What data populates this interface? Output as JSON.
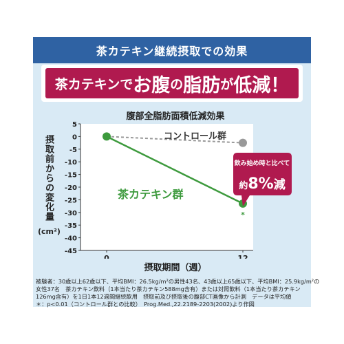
{
  "banner_title": "茶カテキン継続摂取での効果",
  "headline": {
    "p1": "茶カテキンで",
    "p2": "お腹",
    "p3": "の",
    "p4": "脂肪",
    "p5": "が",
    "p6": "低減！"
  },
  "chart_data": {
    "type": "line",
    "title": "腹部全脂肪面積低減効果",
    "ylabel": "摂取前からの変化量",
    "yunit": "(cm²)",
    "xlabel": "摂取期間（週）",
    "x": [
      0,
      12
    ],
    "ylim": [
      -45,
      5
    ],
    "yticks": [
      5,
      0,
      -5,
      -10,
      -15,
      -20,
      -25,
      -30,
      -35,
      -40,
      -45
    ],
    "xticks": [
      "0",
      "12"
    ],
    "series": [
      {
        "name": "コントロール群",
        "values": [
          0,
          -2.5
        ],
        "color": "#999999",
        "style": "dashed"
      },
      {
        "name": "茶カテキン群",
        "values": [
          0,
          -26.5
        ],
        "color": "#3d9a3d",
        "style": "solid",
        "marker_note": "*"
      }
    ],
    "callout": {
      "line1": "飲み始め時と比べて",
      "prefix": "約",
      "value": "8%",
      "suffix": "減",
      "color": "#b01a4f"
    }
  },
  "notes": [
    "被験者：30歳以上62歳以下、平均BMI：26.5kg/m²の男性43名、43歳以上65歳以下、平均BMI：25.9kg/m²の",
    "女性37名　茶カテキン飲料（1本当たり茶カテキン588mg含有）または対照飲料（1本当たり茶カテキン",
    "126mg含有）を1日1本12週間継続飲用　摂取前及び摂取後の腹部CT画像から計測　データは平均値",
    "＊：p<0.01（コントロール群との比較）　Prog.Med.,22.2189-2203(2002)より作図"
  ]
}
